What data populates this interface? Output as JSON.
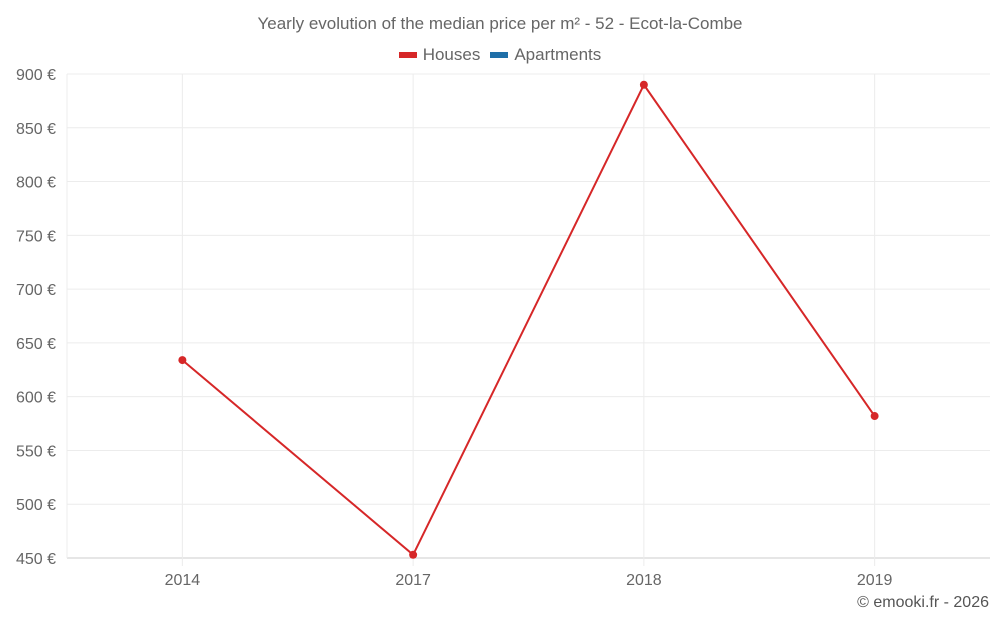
{
  "chart_data": {
    "type": "line",
    "title": "Yearly evolution of the median price per m² - 52 - Ecot-la-Combe",
    "xlabel": "",
    "ylabel": "",
    "categories": [
      "2014",
      "2017",
      "2018",
      "2019"
    ],
    "series": [
      {
        "name": "Houses",
        "color": "#d62728",
        "values": [
          634,
          453,
          890,
          582
        ]
      },
      {
        "name": "Apartments",
        "color": "#1f6fa8",
        "values": [
          null,
          null,
          null,
          null
        ]
      }
    ],
    "ylim": [
      450,
      900
    ],
    "yticks": [
      "900 €",
      "850 €",
      "800 €",
      "750 €",
      "700 €",
      "650 €",
      "600 €",
      "550 €",
      "500 €",
      "450 €"
    ],
    "grid": true,
    "legend_position": "top"
  },
  "legend": {
    "items": [
      {
        "label": "Houses",
        "color": "#d62728"
      },
      {
        "label": "Apartments",
        "color": "#1f6fa8"
      }
    ]
  },
  "footer": "© emooki.fr - 2026"
}
